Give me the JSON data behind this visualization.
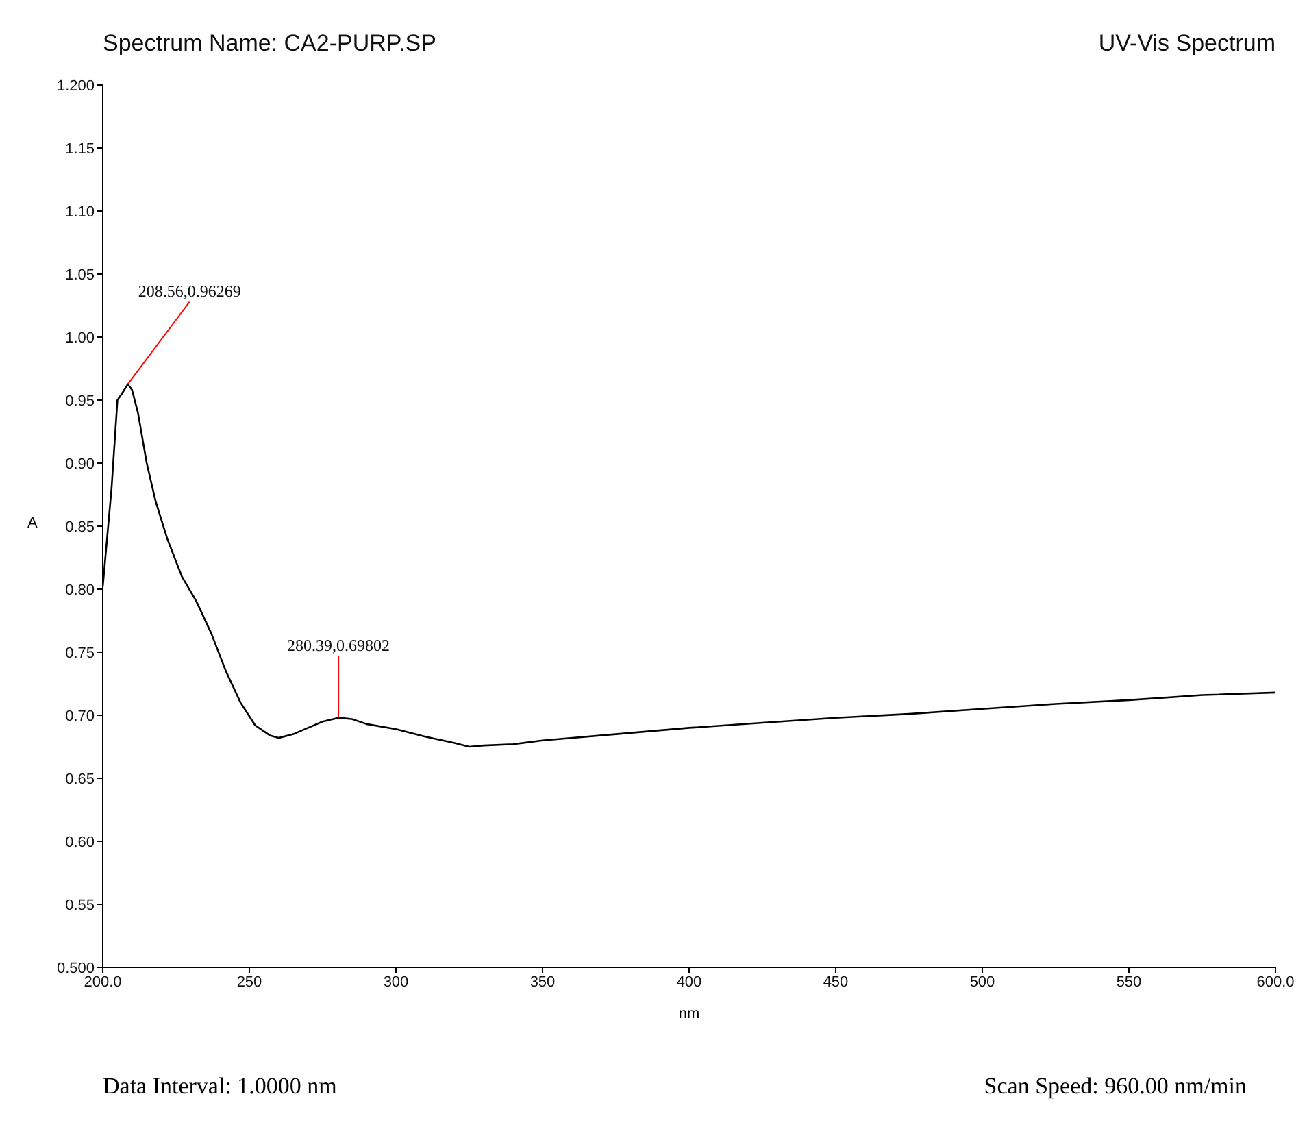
{
  "chart_data": {
    "type": "line",
    "title": "Spectrum Name: CA2-PURP.SP",
    "subtitle": "UV-Vis Spectrum",
    "xlabel": "nm",
    "ylabel": "A",
    "x": [
      200,
      203,
      205,
      206.5,
      208.56,
      210,
      212,
      215,
      218,
      222,
      227,
      232,
      237,
      242,
      247,
      252,
      257,
      260,
      265,
      270,
      275,
      280.39,
      285,
      290,
      300,
      310,
      320,
      325,
      330,
      340,
      350,
      375,
      400,
      425,
      450,
      475,
      500,
      525,
      550,
      575,
      600
    ],
    "series": [
      {
        "color": "#000000",
        "values": [
          0.802,
          0.88,
          0.95,
          0.955,
          0.96269,
          0.958,
          0.94,
          0.9,
          0.87,
          0.84,
          0.81,
          0.79,
          0.765,
          0.735,
          0.71,
          0.692,
          0.684,
          0.682,
          0.685,
          0.69,
          0.695,
          0.69802,
          0.697,
          0.693,
          0.689,
          0.683,
          0.678,
          0.675,
          0.676,
          0.677,
          0.68,
          0.685,
          0.69,
          0.694,
          0.698,
          0.701,
          0.705,
          0.709,
          0.712,
          0.716,
          0.718
        ]
      }
    ],
    "xlim": [
      200,
      600
    ],
    "xticks": [
      {
        "value": 200,
        "label": "200.0"
      },
      250,
      300,
      350,
      400,
      450,
      500,
      550,
      {
        "value": 600,
        "label": "600.0"
      }
    ],
    "ylim": [
      0.5,
      1.2
    ],
    "yticks": [
      {
        "value": 0.5,
        "label": "0.500"
      },
      0.55,
      {
        "value": 0.6,
        "label": "0.60"
      },
      0.65,
      {
        "value": 0.7,
        "label": "0.70"
      },
      0.75,
      {
        "value": 0.8,
        "label": "0.80"
      },
      0.85,
      {
        "value": 0.9,
        "label": "0.90"
      },
      0.95,
      {
        "value": 1.0,
        "label": "1.00"
      },
      1.05,
      {
        "value": 1.1,
        "label": "1.10"
      },
      1.15,
      {
        "value": 1.2,
        "label": "1.200"
      }
    ],
    "annotations": [
      {
        "text": "208.56,0.96269",
        "x": 208.56,
        "y": 0.96269
      },
      {
        "text": "280.39,0.69802",
        "x": 280.39,
        "y": 0.69802
      },
      "Data Interval: 1.0000 nm",
      "Scan Speed: 960.00 nm/min"
    ],
    "grid": false,
    "legend": false,
    "marker": "none",
    "line_style": "solid"
  }
}
